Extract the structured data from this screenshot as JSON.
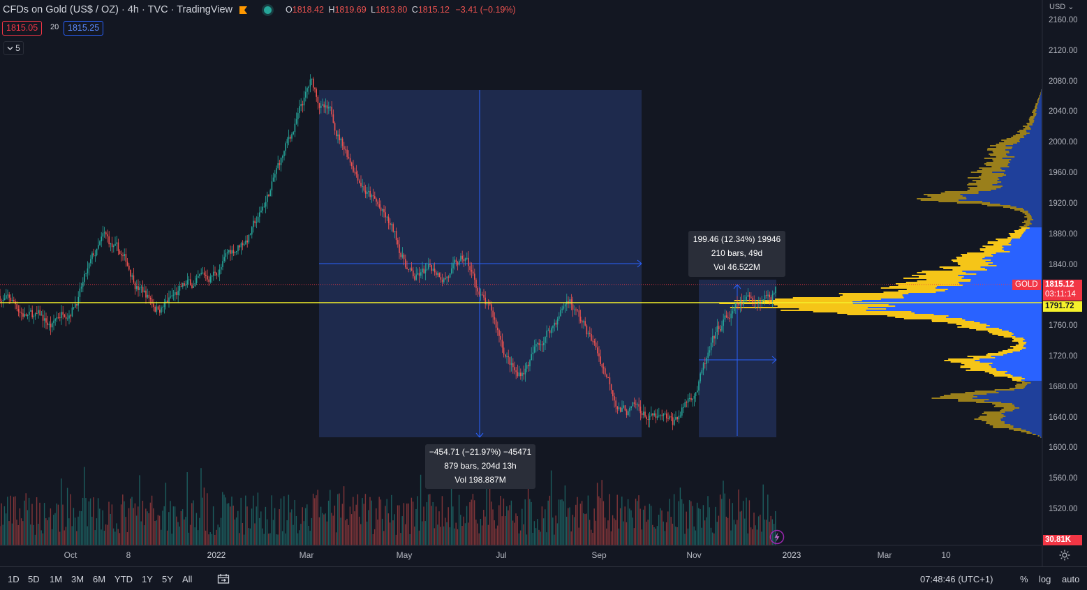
{
  "header": {
    "title": "CFDs on Gold (US$ / OZ) · 4h · TVC · TradingView",
    "ohlc": [
      {
        "key": "O",
        "value": "1818.42"
      },
      {
        "key": "H",
        "value": "1819.69"
      },
      {
        "key": "L",
        "value": "1813.80"
      },
      {
        "key": "C",
        "value": "1815.12"
      }
    ],
    "change": "−3.41 (−0.19%)",
    "bid": "1815.05",
    "spread": "20",
    "ask": "1815.25",
    "indicators_toggle": "5",
    "icons": {
      "flag": "flag-icon",
      "status": "market-open-dot-icon"
    }
  },
  "price_axis": {
    "currency": "USD",
    "ticks": [
      "2160.00",
      "2120.00",
      "2080.00",
      "2040.00",
      "2000.00",
      "1960.00",
      "1920.00",
      "1880.00",
      "1840.00",
      "1800.00",
      "1760.00",
      "1720.00",
      "1680.00",
      "1640.00",
      "1600.00",
      "1560.00",
      "1520.00"
    ],
    "last_price_label": "GOLD",
    "last_price": "1815.12",
    "countdown": "03:11:14",
    "poc_price": "1791.72",
    "volume_last": "30.81K"
  },
  "time_axis": {
    "ticks": [
      "Oct",
      "8",
      "2022",
      "Mar",
      "May",
      "Jul",
      "Sep",
      "Nov",
      "2023",
      "Mar",
      "10"
    ]
  },
  "measurements": [
    {
      "lines": [
        "199.46 (12.34%) 19946",
        "210 bars, 49d",
        "Vol 46.522M"
      ]
    },
    {
      "lines": [
        "−454.71 (−21.97%) −45471",
        "879 bars, 204d 13h",
        "Vol 198.887M"
      ]
    }
  ],
  "toolbar": {
    "ranges": [
      "1D",
      "5D",
      "1M",
      "3M",
      "6M",
      "YTD",
      "1Y",
      "5Y",
      "All"
    ],
    "time": "07:48:46 (UTC+1)",
    "percent": "%",
    "log": "log",
    "auto": "auto",
    "icons": {
      "compare": "date-range-icon",
      "settings": "gear-icon",
      "lightning": "lightning-icon"
    }
  },
  "colors": {
    "background": "#131722",
    "up": "#26a69a",
    "down": "#ef5350",
    "poc_line": "#f5f12b",
    "measure_fill": "#1e2a4d",
    "measure_line": "#2962ff",
    "vp_yellow": "#f5c518",
    "vp_blue": "#2962ff"
  },
  "chart_data": {
    "type": "candlestick",
    "symbol": "GOLD",
    "interval": "4h",
    "price_keypoints": [
      {
        "x": "Sep 2021",
        "price": 1800
      },
      {
        "x": "Oct 2021",
        "price": 1755
      },
      {
        "x": "Nov 2021",
        "price": 1865
      },
      {
        "x": "Dec 2021",
        "price": 1790
      },
      {
        "x": "Jan 2022",
        "price": 1815
      },
      {
        "x": "Feb 2022",
        "price": 1900
      },
      {
        "x": "Mar 2022",
        "price": 2070
      },
      {
        "x": "Apr 2022",
        "price": 1960
      },
      {
        "x": "May 2022",
        "price": 1820
      },
      {
        "x": "Jun 2022",
        "price": 1840
      },
      {
        "x": "Jul 2022",
        "price": 1690
      },
      {
        "x": "Aug 2022",
        "price": 1800
      },
      {
        "x": "Sep 2022",
        "price": 1660
      },
      {
        "x": "Oct 2022",
        "price": 1620
      },
      {
        "x": "Nov 2022",
        "price": 1760
      },
      {
        "x": "Dec 2022",
        "price": 1815
      }
    ],
    "ylim": [
      1500,
      2180
    ]
  }
}
